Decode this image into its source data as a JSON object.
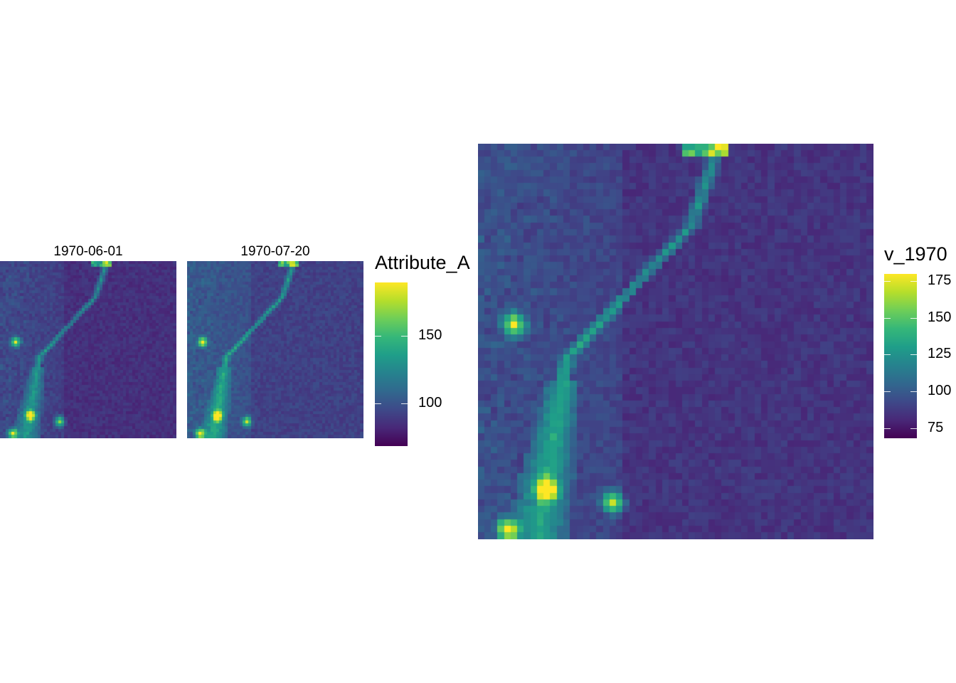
{
  "chart_data": [
    {
      "type": "heatmap",
      "facets": [
        "1970-06-01",
        "1970-07-20"
      ],
      "legend": {
        "title": "Attribute_A",
        "ticks": [
          100,
          150
        ],
        "range": [
          68,
          190
        ]
      },
      "colormap": "viridis"
    },
    {
      "type": "heatmap",
      "legend": {
        "title": "v_1970",
        "ticks": [
          75,
          100,
          125,
          150,
          175
        ],
        "range": [
          68,
          180
        ]
      },
      "colormap": "viridis"
    }
  ],
  "colors": {
    "viridis": [
      "#440154",
      "#482878",
      "#3e4989",
      "#31688e",
      "#26828e",
      "#1f9e89",
      "#35b779",
      "#6ece58",
      "#b5de2b",
      "#fde725"
    ]
  }
}
